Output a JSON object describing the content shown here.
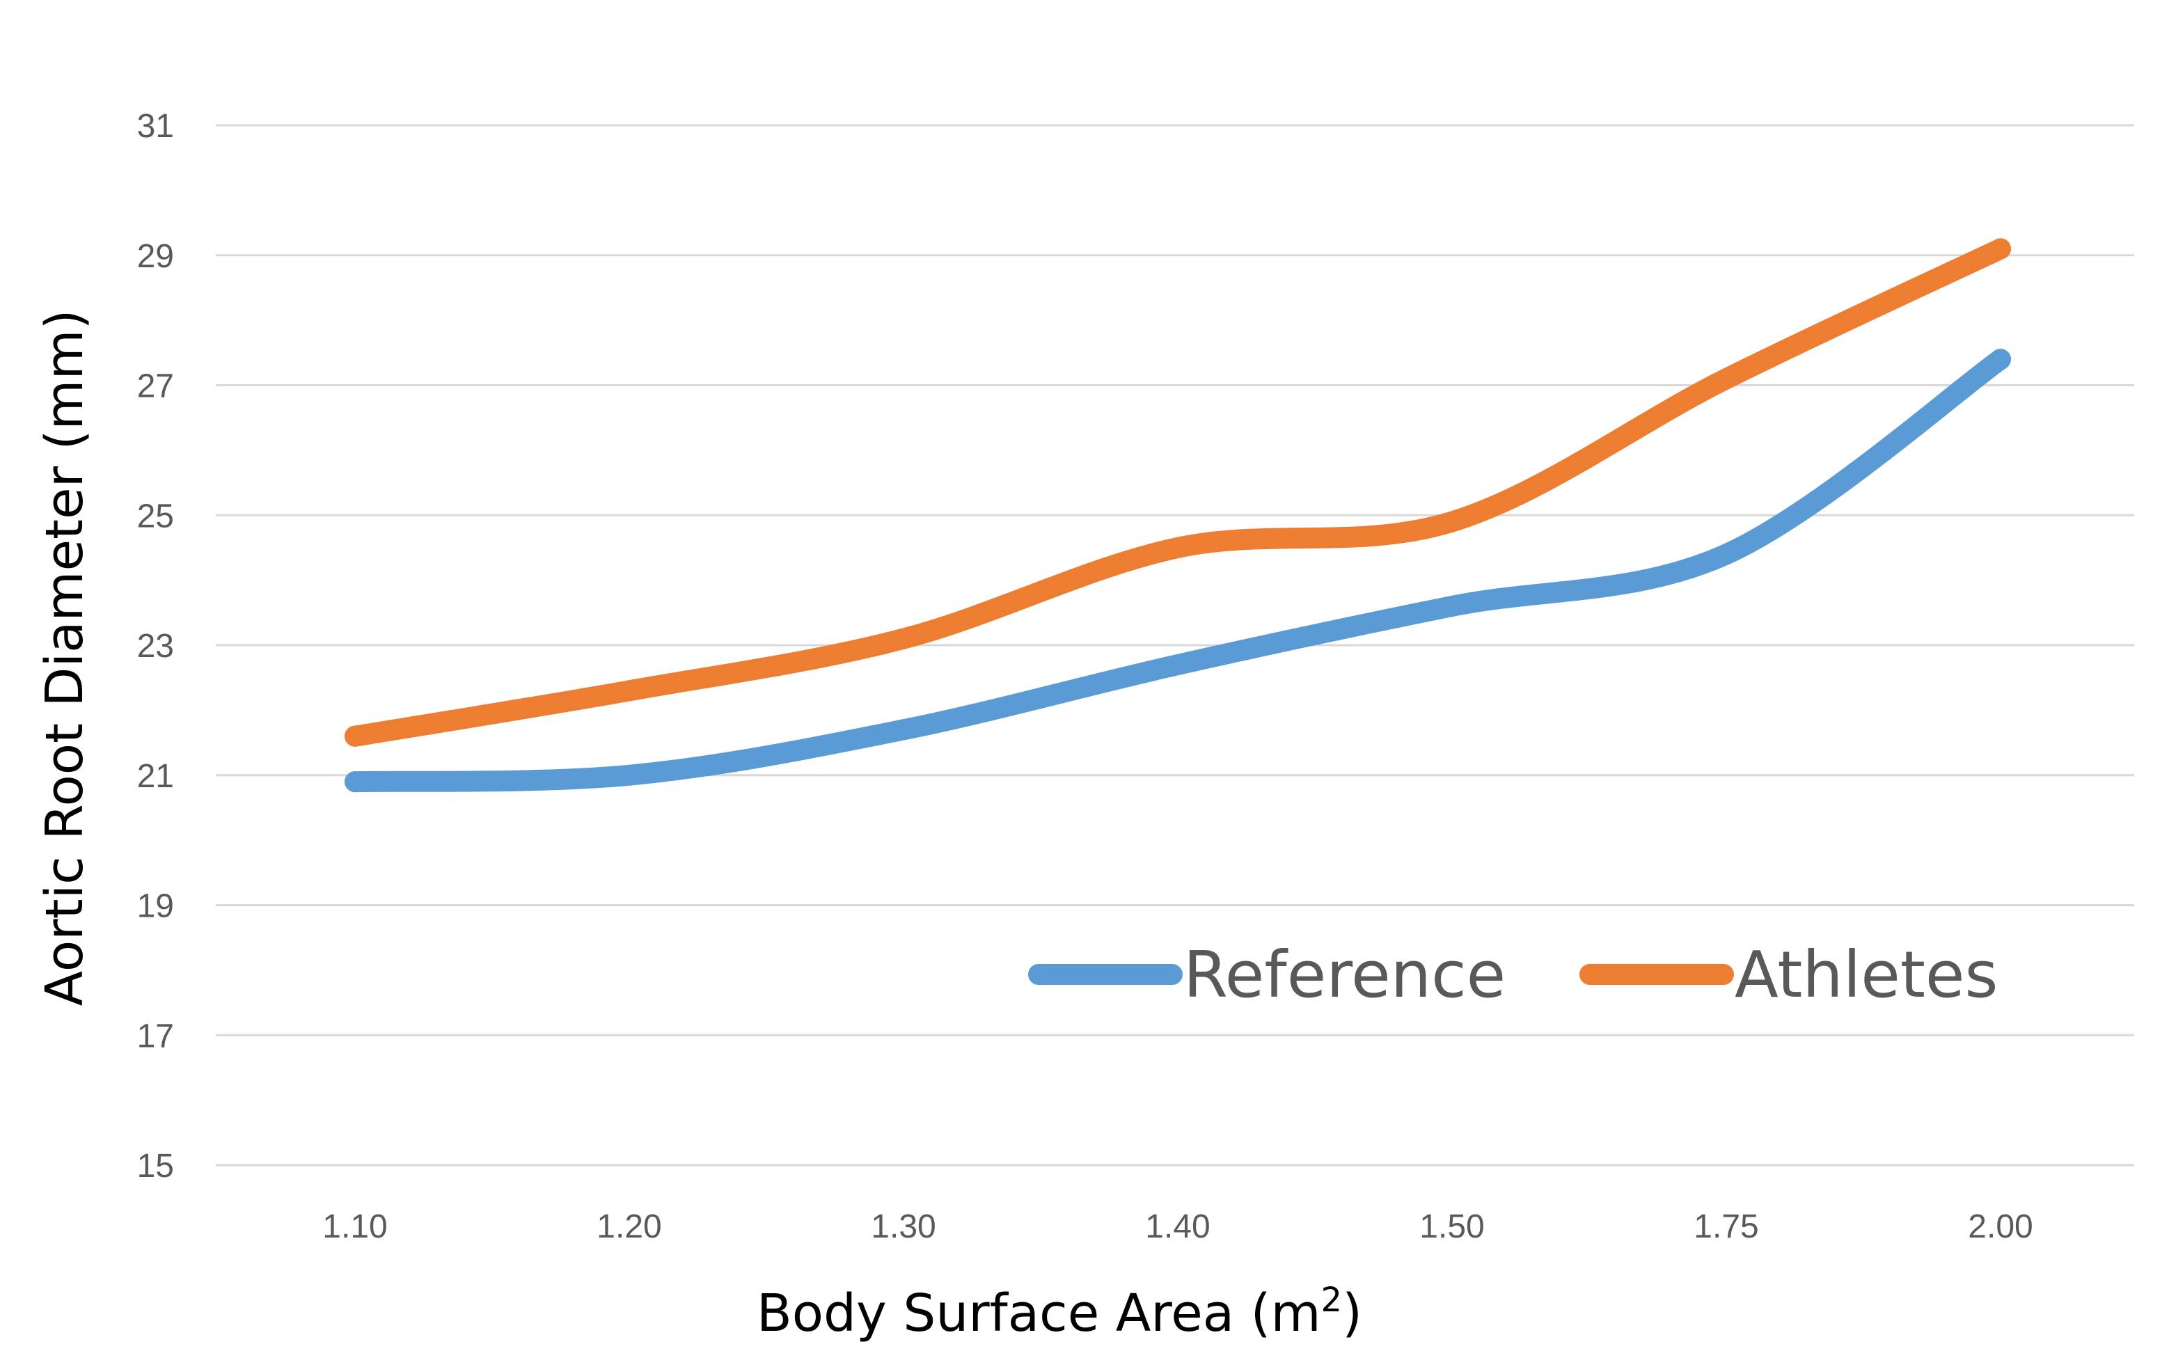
{
  "chart_data": {
    "type": "line",
    "title": "",
    "xlabel": "Body Surface Area (m",
    "xlabel_superscript": "2",
    "xlabel_suffix": ")",
    "ylabel": "Aortic Root Diameter (mm)",
    "categories": [
      "1.10",
      "1.20",
      "1.30",
      "1.40",
      "1.50",
      "1.75",
      "2.00"
    ],
    "yticks": [
      15,
      17,
      19,
      21,
      23,
      25,
      27,
      29,
      31
    ],
    "ylim": [
      15,
      31
    ],
    "grid": true,
    "smooth": true,
    "legend_position": "bottom-right inside plot",
    "series": [
      {
        "name": "Reference",
        "color": "#5B9BD5",
        "values": [
          20.9,
          21.0,
          21.7,
          22.7,
          23.6,
          24.4,
          27.4
        ]
      },
      {
        "name": "Athletes",
        "color": "#ED7D31",
        "values": [
          21.6,
          22.3,
          23.1,
          24.5,
          24.9,
          27.1,
          29.1
        ]
      }
    ]
  }
}
